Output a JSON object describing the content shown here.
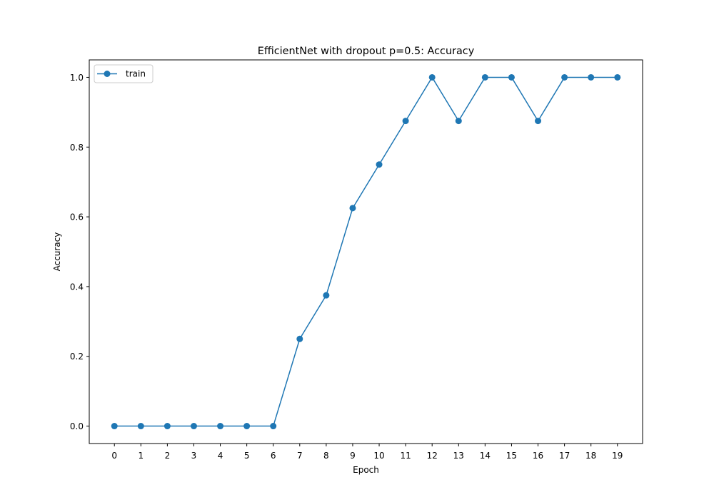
{
  "chart_data": {
    "type": "line",
    "title": "EfficientNet with dropout p=0.5: Accuracy",
    "xlabel": "Epoch",
    "ylabel": "Accuracy",
    "x": [
      0,
      1,
      2,
      3,
      4,
      5,
      6,
      7,
      8,
      9,
      10,
      11,
      12,
      13,
      14,
      15,
      16,
      17,
      18,
      19
    ],
    "x_ticks": [
      "0",
      "1",
      "2",
      "3",
      "4",
      "5",
      "6",
      "7",
      "8",
      "9",
      "10",
      "11",
      "12",
      "13",
      "14",
      "15",
      "16",
      "17",
      "18",
      "19"
    ],
    "y_ticks": [
      "0.0",
      "0.2",
      "0.4",
      "0.6",
      "0.8",
      "1.0"
    ],
    "xlim": [
      -0.95,
      19.95
    ],
    "ylim": [
      -0.05,
      1.05
    ],
    "grid": false,
    "legend_position": "upper left",
    "series": [
      {
        "name": "train",
        "color": "#1f77b4",
        "marker": "circle",
        "values": [
          0.0,
          0.0,
          0.0,
          0.0,
          0.0,
          0.0,
          0.0,
          0.25,
          0.375,
          0.625,
          0.75,
          0.875,
          1.0,
          0.875,
          1.0,
          1.0,
          0.875,
          1.0,
          1.0,
          1.0
        ]
      }
    ]
  }
}
